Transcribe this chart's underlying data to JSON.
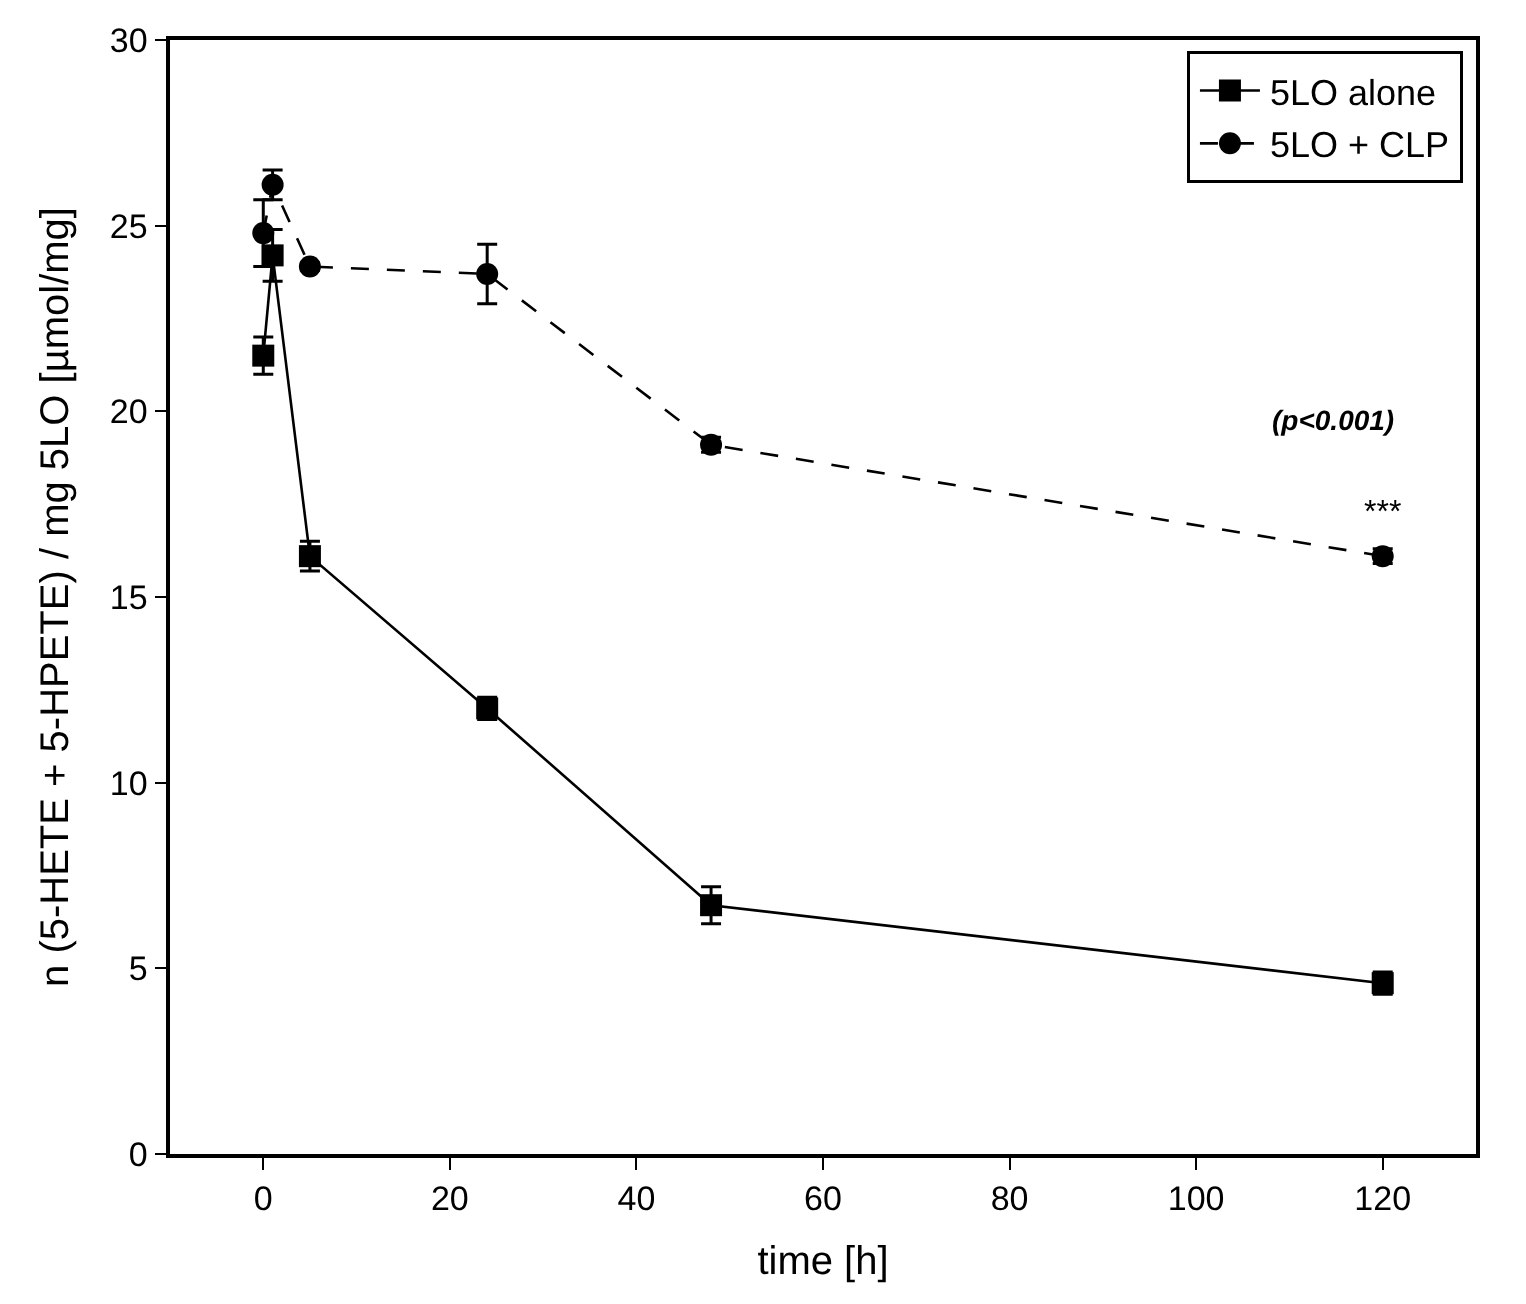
{
  "chart_data": {
    "type": "line",
    "xlabel": "time [h]",
    "ylabel": "n (5-HETE + 5-HPETE) / mg 5LO [µmol/mg]",
    "xlim": [
      -10,
      130
    ],
    "xticks": [
      0,
      20,
      40,
      60,
      80,
      100,
      120
    ],
    "ylim": [
      0,
      30
    ],
    "yticks": [
      0,
      5,
      10,
      15,
      20,
      25,
      30
    ],
    "legend": "top right",
    "series": [
      {
        "name": "5LO alone",
        "color": "#000000",
        "marker": "square",
        "line_style": "solid",
        "x": [
          0,
          1,
          5,
          24,
          48,
          120
        ],
        "values": [
          21.5,
          24.2,
          16.1,
          12.0,
          6.7,
          4.6
        ],
        "errors": [
          0.5,
          0.7,
          0.4,
          0.3,
          0.5,
          0.3
        ]
      },
      {
        "name": "5LO + CLP",
        "color": "#000000",
        "marker": "circle",
        "line_style": "dashed",
        "x": [
          0,
          1,
          5,
          24,
          48,
          120
        ],
        "values": [
          24.8,
          26.1,
          23.9,
          23.7,
          19.1,
          16.1
        ],
        "errors": [
          0.9,
          0.4,
          0.1,
          0.8,
          0.2,
          0.2
        ]
      }
    ],
    "annotations": [
      "***",
      "(p<0.001)"
    ]
  }
}
